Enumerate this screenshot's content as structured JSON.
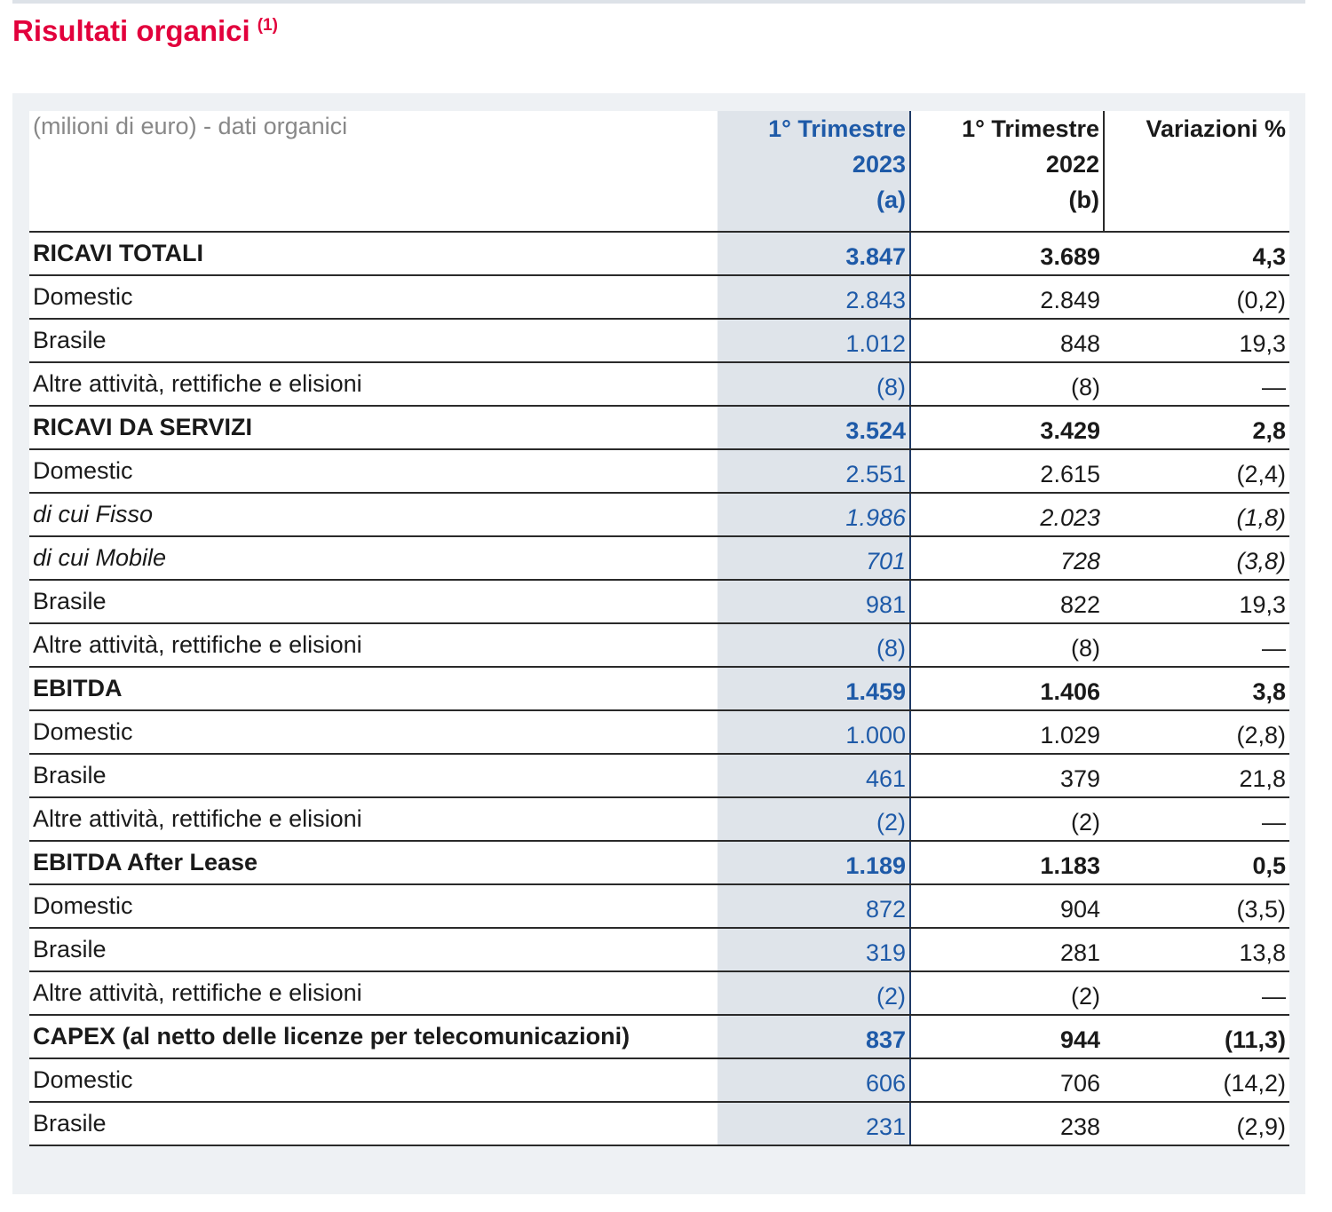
{
  "header": {
    "title": "Risultati organici",
    "note_ref": "(1)"
  },
  "table": {
    "caption": "(milioni di euro) - dati organici",
    "columns": [
      {
        "lines": [
          "1° Trimestre",
          "2023",
          "(a)"
        ]
      },
      {
        "lines": [
          "1° Trimestre",
          "2022",
          "(b)"
        ]
      },
      {
        "lines": [
          "Variazioni %"
        ]
      }
    ],
    "rows": [
      {
        "cells": [
          "RICAVI TOTALI",
          "3.847",
          "3.689",
          "4,3"
        ],
        "bold": true
      },
      {
        "cells": [
          "Domestic",
          "2.843",
          "2.849",
          "(0,2)"
        ]
      },
      {
        "cells": [
          "Brasile",
          "1.012",
          "848",
          "19,3"
        ]
      },
      {
        "cells": [
          "Altre attività, rettifiche e elisioni",
          "(8)",
          "(8)",
          "—"
        ]
      },
      {
        "cells": [
          "RICAVI DA SERVIZI",
          "3.524",
          "3.429",
          "2,8"
        ],
        "bold": true
      },
      {
        "cells": [
          "Domestic",
          "2.551",
          "2.615",
          "(2,4)"
        ]
      },
      {
        "cells": [
          "di cui Fisso",
          "1.986",
          "2.023",
          "(1,8)"
        ],
        "italic": true
      },
      {
        "cells": [
          "di cui Mobile",
          "701",
          "728",
          "(3,8)"
        ],
        "italic": true
      },
      {
        "cells": [
          "Brasile",
          "981",
          "822",
          "19,3"
        ]
      },
      {
        "cells": [
          "Altre attività, rettifiche e elisioni",
          "(8)",
          "(8)",
          "—"
        ]
      },
      {
        "cells": [
          "EBITDA",
          "1.459",
          "1.406",
          "3,8"
        ],
        "bold": true
      },
      {
        "cells": [
          "Domestic",
          "1.000",
          "1.029",
          "(2,8)"
        ]
      },
      {
        "cells": [
          "Brasile",
          "461",
          "379",
          "21,8"
        ]
      },
      {
        "cells": [
          "Altre attività, rettifiche e elisioni",
          "(2)",
          "(2)",
          "—"
        ]
      },
      {
        "cells": [
          "EBITDA After Lease",
          "1.189",
          "1.183",
          "0,5"
        ],
        "bold": true
      },
      {
        "cells": [
          "Domestic",
          "872",
          "904",
          "(3,5)"
        ]
      },
      {
        "cells": [
          "Brasile",
          "319",
          "281",
          "13,8"
        ]
      },
      {
        "cells": [
          "Altre attività, rettifiche e elisioni",
          "(2)",
          "(2)",
          "—"
        ]
      },
      {
        "cells": [
          "CAPEX (al netto delle licenze per telecomunicazioni)",
          "837",
          "944",
          "(11,3)"
        ],
        "bold": true
      },
      {
        "cells": [
          "Domestic",
          "606",
          "706",
          "(14,2)"
        ]
      },
      {
        "cells": [
          "Brasile",
          "231",
          "238",
          "(2,9)"
        ]
      }
    ]
  }
}
